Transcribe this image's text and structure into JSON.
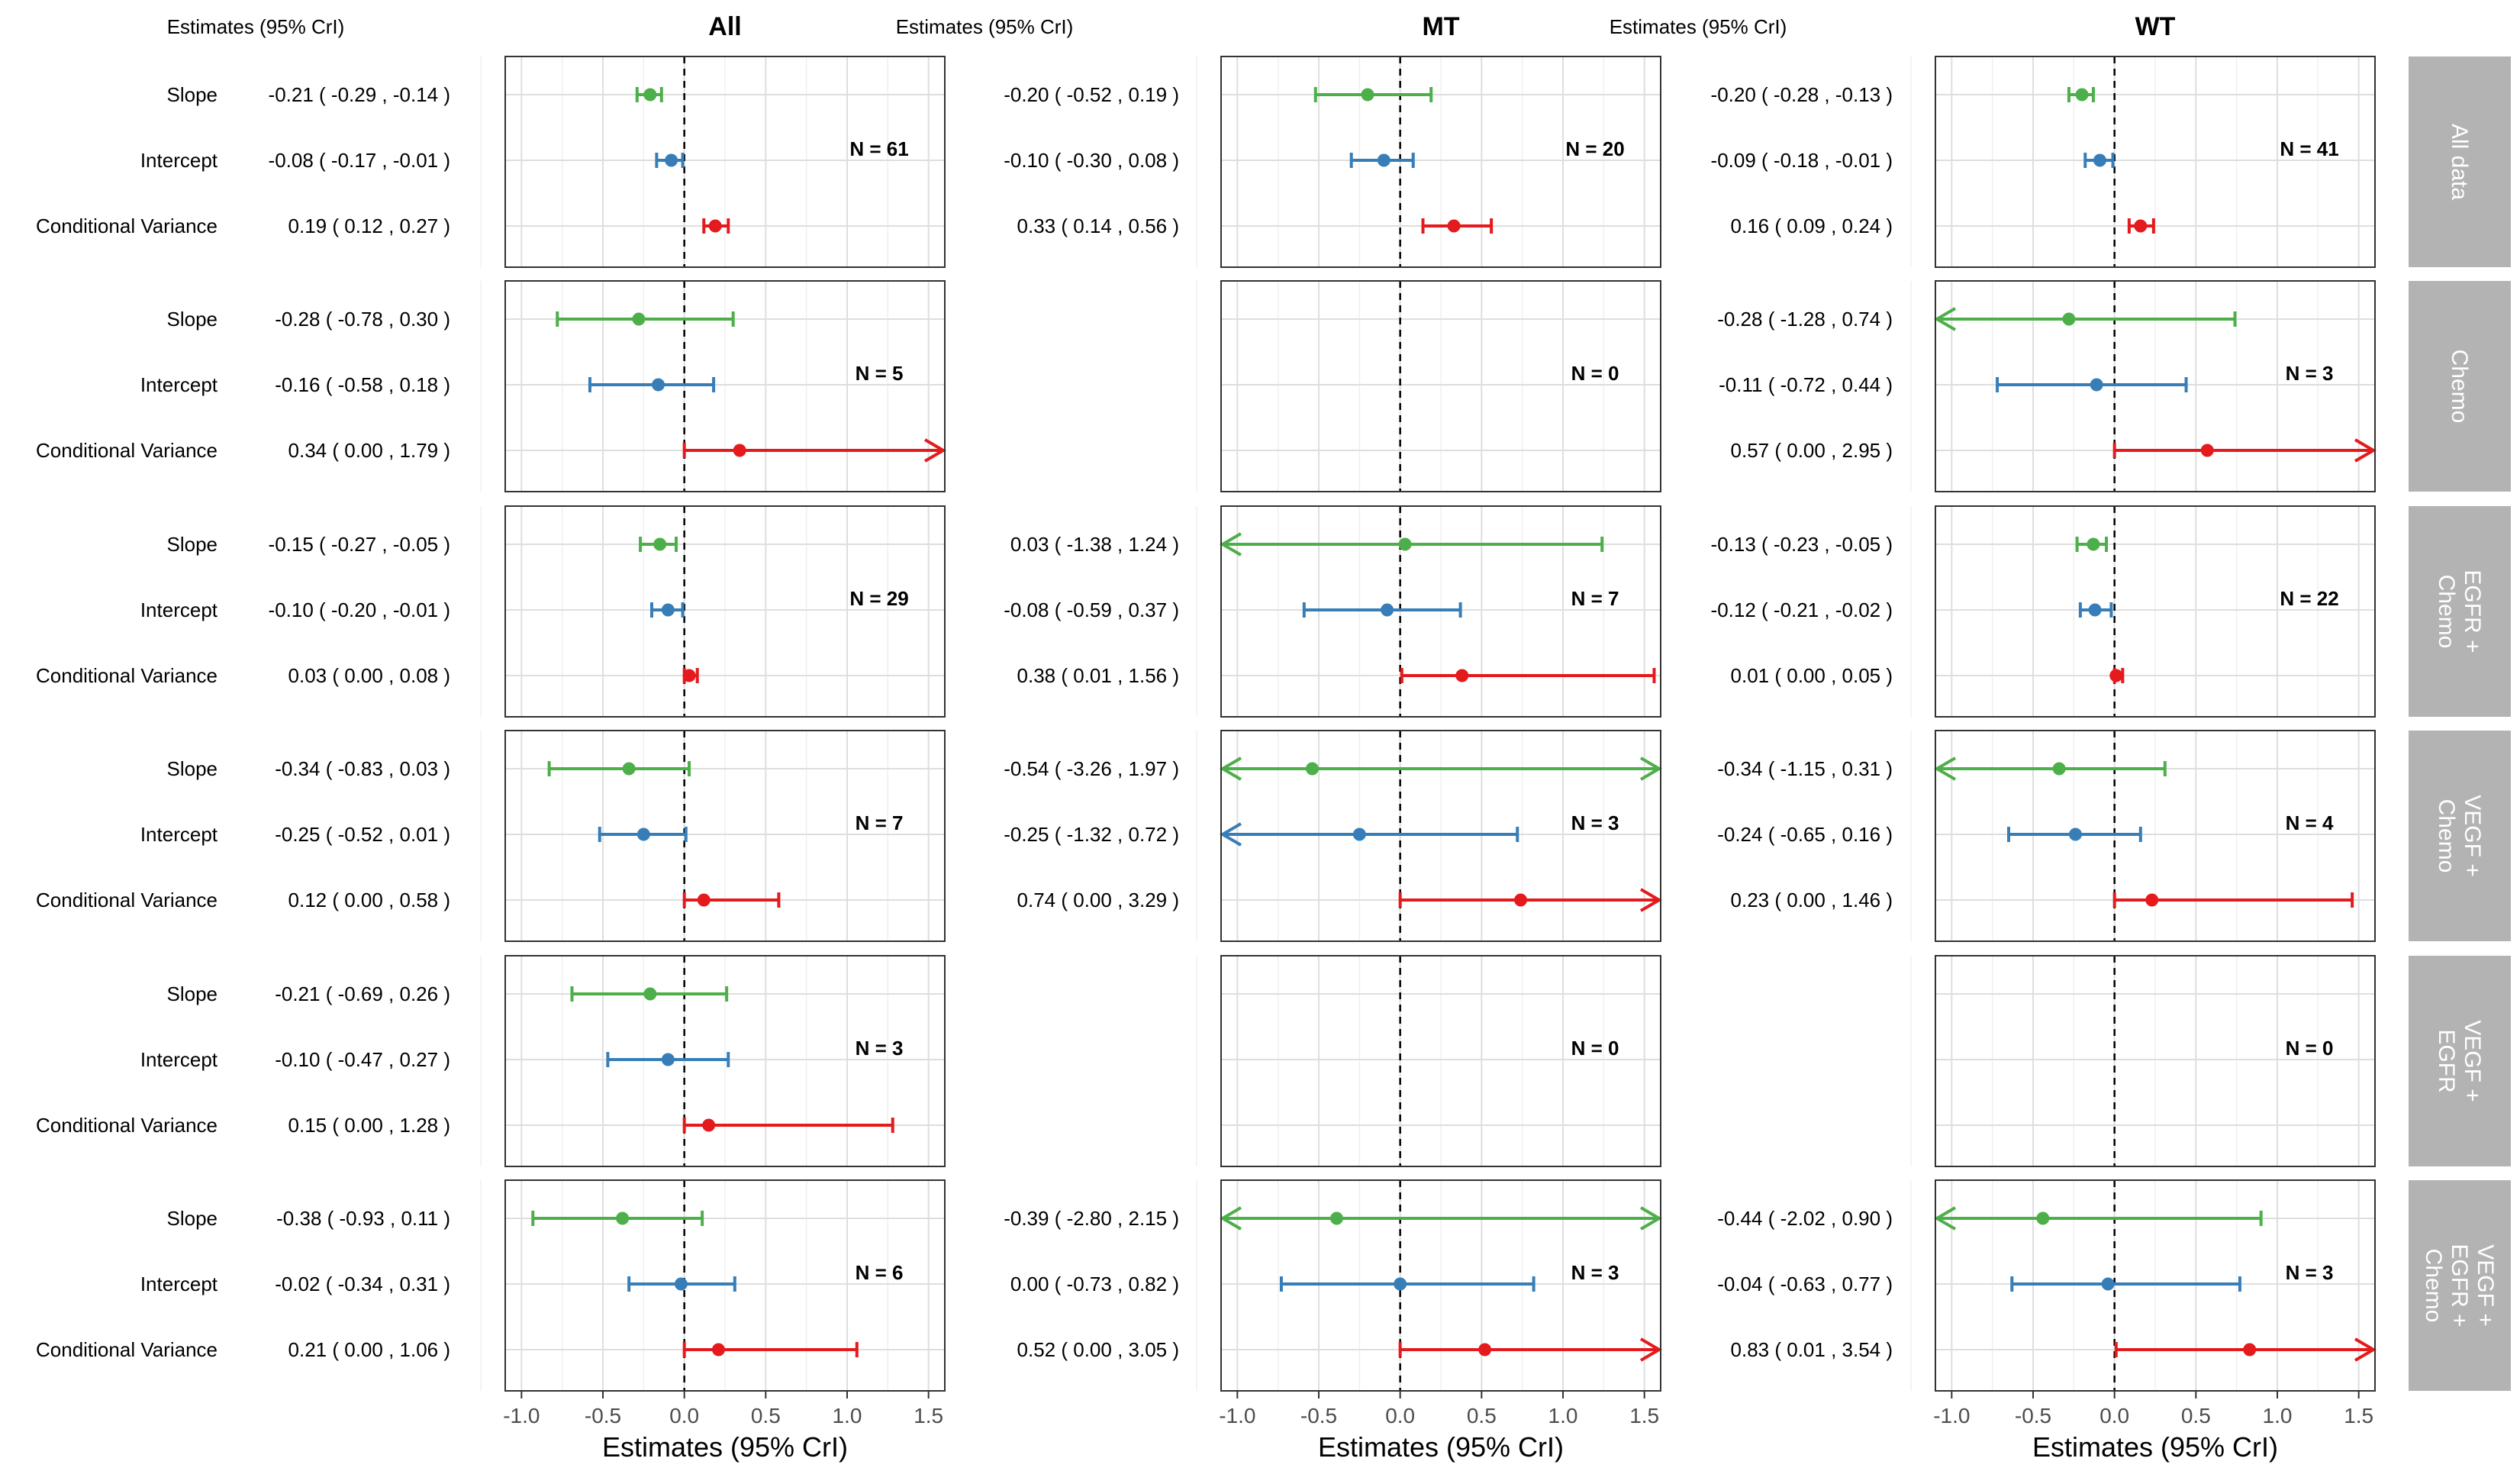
{
  "chart_data": {
    "type": "forest",
    "xlabel": "Estimates (95% CrI)",
    "estimates_header": "Estimates (95% CrI)",
    "xlim": [
      -1.1,
      1.6
    ],
    "xticks": [
      -1.0,
      -0.5,
      0.0,
      0.5,
      1.0,
      1.5
    ],
    "xtick_labels": [
      "-1.0",
      "-0.5",
      "0.0",
      "0.5",
      "1.0",
      "1.5"
    ],
    "reference_line": 0,
    "row_labels": [
      "Slope",
      "Intercept",
      "Conditional Variance"
    ],
    "colors": {
      "Slope": "#4DAF4A",
      "Intercept": "#377EB8",
      "Conditional Variance": "#E41A1C"
    },
    "strip_fill": "#B3B3B3",
    "columns": [
      "All",
      "MT",
      "WT"
    ],
    "groups": [
      {
        "strip": [
          "All data"
        ],
        "panels": [
          {
            "n_label": "N = 61",
            "rows": [
              {
                "text": "-0.21 ( -0.29 , -0.14 )",
                "est": -0.21,
                "lo": -0.29,
                "hi": -0.14
              },
              {
                "text": "-0.08 ( -0.17 , -0.01 )",
                "est": -0.08,
                "lo": -0.17,
                "hi": -0.01
              },
              {
                "text": "0.19 ( 0.12 , 0.27 )",
                "est": 0.19,
                "lo": 0.12,
                "hi": 0.27
              }
            ]
          },
          {
            "n_label": "N = 20",
            "rows": [
              {
                "text": "-0.20 ( -0.52 , 0.19 )",
                "est": -0.2,
                "lo": -0.52,
                "hi": 0.19
              },
              {
                "text": "-0.10 ( -0.30 , 0.08 )",
                "est": -0.1,
                "lo": -0.3,
                "hi": 0.08
              },
              {
                "text": "0.33 ( 0.14 , 0.56 )",
                "est": 0.33,
                "lo": 0.14,
                "hi": 0.56
              }
            ]
          },
          {
            "n_label": "N = 41",
            "rows": [
              {
                "text": "-0.20 ( -0.28 , -0.13 )",
                "est": -0.2,
                "lo": -0.28,
                "hi": -0.13
              },
              {
                "text": "-0.09 ( -0.18 , -0.01 )",
                "est": -0.09,
                "lo": -0.18,
                "hi": -0.01
              },
              {
                "text": "0.16 ( 0.09 , 0.24 )",
                "est": 0.16,
                "lo": 0.09,
                "hi": 0.24
              }
            ]
          }
        ]
      },
      {
        "strip": [
          "Chemo"
        ],
        "panels": [
          {
            "n_label": "N = 5",
            "rows": [
              {
                "text": "-0.28 ( -0.78 , 0.30 )",
                "est": -0.28,
                "lo": -0.78,
                "hi": 0.3
              },
              {
                "text": "-0.16 ( -0.58 , 0.18 )",
                "est": -0.16,
                "lo": -0.58,
                "hi": 0.18
              },
              {
                "text": "0.34 ( 0.00 , 1.79 )",
                "est": 0.34,
                "lo": 0.0,
                "hi": 1.79
              }
            ]
          },
          {
            "n_label": "N = 0",
            "rows": []
          },
          {
            "n_label": "N = 3",
            "rows": [
              {
                "text": "-0.28 ( -1.28 , 0.74 )",
                "est": -0.28,
                "lo": -1.28,
                "hi": 0.74
              },
              {
                "text": "-0.11 ( -0.72 , 0.44 )",
                "est": -0.11,
                "lo": -0.72,
                "hi": 0.44
              },
              {
                "text": "0.57 ( 0.00 , 2.95 )",
                "est": 0.57,
                "lo": 0.0,
                "hi": 2.95
              }
            ]
          }
        ]
      },
      {
        "strip": [
          "EGFR +",
          "Chemo"
        ],
        "panels": [
          {
            "n_label": "N = 29",
            "rows": [
              {
                "text": "-0.15 ( -0.27 , -0.05 )",
                "est": -0.15,
                "lo": -0.27,
                "hi": -0.05
              },
              {
                "text": "-0.10 ( -0.20 , -0.01 )",
                "est": -0.1,
                "lo": -0.2,
                "hi": -0.01
              },
              {
                "text": "0.03 ( 0.00 , 0.08 )",
                "est": 0.03,
                "lo": 0.0,
                "hi": 0.08
              }
            ]
          },
          {
            "n_label": "N = 7",
            "rows": [
              {
                "text": "0.03 ( -1.38 , 1.24 )",
                "est": 0.03,
                "lo": -1.38,
                "hi": 1.24
              },
              {
                "text": "-0.08 ( -0.59 , 0.37 )",
                "est": -0.08,
                "lo": -0.59,
                "hi": 0.37
              },
              {
                "text": "0.38 ( 0.01 , 1.56 )",
                "est": 0.38,
                "lo": 0.01,
                "hi": 1.56
              }
            ]
          },
          {
            "n_label": "N = 22",
            "rows": [
              {
                "text": "-0.13 ( -0.23 , -0.05 )",
                "est": -0.13,
                "lo": -0.23,
                "hi": -0.05
              },
              {
                "text": "-0.12 ( -0.21 , -0.02 )",
                "est": -0.12,
                "lo": -0.21,
                "hi": -0.02
              },
              {
                "text": "0.01 ( 0.00 , 0.05 )",
                "est": 0.01,
                "lo": 0.0,
                "hi": 0.05
              }
            ]
          }
        ]
      },
      {
        "strip": [
          "VEGF +",
          "Chemo"
        ],
        "panels": [
          {
            "n_label": "N = 7",
            "rows": [
              {
                "text": "-0.34 ( -0.83 , 0.03 )",
                "est": -0.34,
                "lo": -0.83,
                "hi": 0.03
              },
              {
                "text": "-0.25 ( -0.52 , 0.01 )",
                "est": -0.25,
                "lo": -0.52,
                "hi": 0.01
              },
              {
                "text": "0.12 ( 0.00 , 0.58 )",
                "est": 0.12,
                "lo": 0.0,
                "hi": 0.58
              }
            ]
          },
          {
            "n_label": "N = 3",
            "rows": [
              {
                "text": "-0.54 ( -3.26 , 1.97 )",
                "est": -0.54,
                "lo": -3.26,
                "hi": 1.97
              },
              {
                "text": "-0.25 ( -1.32 , 0.72 )",
                "est": -0.25,
                "lo": -1.32,
                "hi": 0.72
              },
              {
                "text": "0.74 ( 0.00 , 3.29 )",
                "est": 0.74,
                "lo": 0.0,
                "hi": 3.29
              }
            ]
          },
          {
            "n_label": "N = 4",
            "rows": [
              {
                "text": "-0.34 ( -1.15 , 0.31 )",
                "est": -0.34,
                "lo": -1.15,
                "hi": 0.31
              },
              {
                "text": "-0.24 ( -0.65 , 0.16 )",
                "est": -0.24,
                "lo": -0.65,
                "hi": 0.16
              },
              {
                "text": "0.23 ( 0.00 , 1.46 )",
                "est": 0.23,
                "lo": 0.0,
                "hi": 1.46
              }
            ]
          }
        ]
      },
      {
        "strip": [
          "VEGF +",
          "EGFR"
        ],
        "panels": [
          {
            "n_label": "N = 3",
            "rows": [
              {
                "text": "-0.21 ( -0.69 , 0.26 )",
                "est": -0.21,
                "lo": -0.69,
                "hi": 0.26
              },
              {
                "text": "-0.10 ( -0.47 , 0.27 )",
                "est": -0.1,
                "lo": -0.47,
                "hi": 0.27
              },
              {
                "text": "0.15 ( 0.00 , 1.28 )",
                "est": 0.15,
                "lo": 0.0,
                "hi": 1.28
              }
            ]
          },
          {
            "n_label": "N = 0",
            "rows": []
          },
          {
            "n_label": "N = 0",
            "rows": []
          }
        ]
      },
      {
        "strip": [
          "VEGF +",
          "EGFR +",
          "Chemo"
        ],
        "panels": [
          {
            "n_label": "N = 6",
            "rows": [
              {
                "text": "-0.38 ( -0.93 , 0.11 )",
                "est": -0.38,
                "lo": -0.93,
                "hi": 0.11
              },
              {
                "text": "-0.02 ( -0.34 , 0.31 )",
                "est": -0.02,
                "lo": -0.34,
                "hi": 0.31
              },
              {
                "text": "0.21 ( 0.00 , 1.06 )",
                "est": 0.21,
                "lo": 0.0,
                "hi": 1.06
              }
            ]
          },
          {
            "n_label": "N = 3",
            "rows": [
              {
                "text": "-0.39 ( -2.80 , 2.15 )",
                "est": -0.39,
                "lo": -2.8,
                "hi": 2.15
              },
              {
                "text": "0.00 ( -0.73 , 0.82 )",
                "est": 0.0,
                "lo": -0.73,
                "hi": 0.82
              },
              {
                "text": "0.52 ( 0.00 , 3.05 )",
                "est": 0.52,
                "lo": 0.0,
                "hi": 3.05
              }
            ]
          },
          {
            "n_label": "N = 3",
            "rows": [
              {
                "text": "-0.44 ( -2.02 , 0.90 )",
                "est": -0.44,
                "lo": -2.02,
                "hi": 0.9
              },
              {
                "text": "-0.04 ( -0.63 , 0.77 )",
                "est": -0.04,
                "lo": -0.63,
                "hi": 0.77
              },
              {
                "text": "0.83 ( 0.01 , 3.54 )",
                "est": 0.83,
                "lo": 0.01,
                "hi": 3.54
              }
            ]
          }
        ]
      }
    ]
  }
}
